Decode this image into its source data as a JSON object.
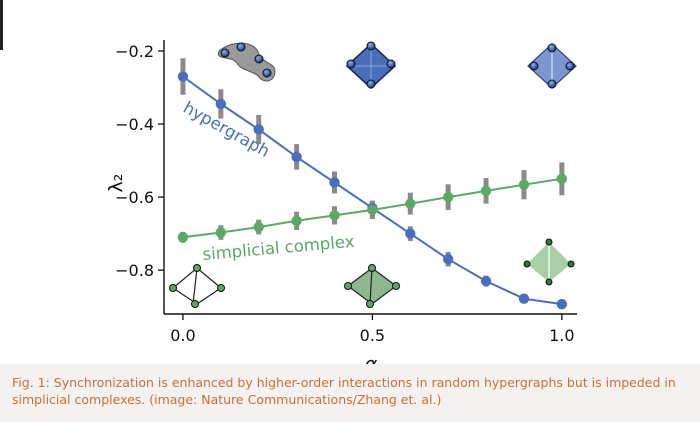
{
  "caption": "Fig. 1: Synchronization is enhanced by higher-order interactions in random hypergraphs but is impeded in simplicial complexes. (image: Nature Communications/Zhang et. al.)",
  "colors": {
    "hypergraph": "#4a6fba",
    "simplicial": "#5aa964",
    "errorbar": "#8a8a8a",
    "caption_text": "#c8703b",
    "caption_bg": "#f3f2f0"
  },
  "chart_data": {
    "type": "line",
    "xlabel": "α",
    "ylabel": "λ₂",
    "xlim": [
      -0.05,
      1.04
    ],
    "ylim": [
      -0.92,
      -0.17
    ],
    "xticks": [
      0.0,
      0.5,
      1.0
    ],
    "xtick_labels": [
      "0.0",
      "0.5",
      "1.0"
    ],
    "yticks": [
      -0.2,
      -0.4,
      -0.6,
      -0.8
    ],
    "ytick_labels": [
      "−0.2",
      "−0.4",
      "−0.6",
      "−0.8"
    ],
    "grid": false,
    "x": [
      0.0,
      0.1,
      0.2,
      0.3,
      0.4,
      0.5,
      0.6,
      0.7,
      0.8,
      0.9,
      1.0
    ],
    "series": [
      {
        "name": "hypergraph",
        "values": [
          -0.27,
          -0.345,
          -0.415,
          -0.49,
          -0.56,
          -0.63,
          -0.7,
          -0.77,
          -0.83,
          -0.878,
          -0.893
        ],
        "err": [
          0.05,
          0.04,
          0.04,
          0.035,
          0.03,
          0.02,
          0.02,
          0.02,
          0.015,
          0.01,
          0.005
        ]
      },
      {
        "name": "simplicial complex",
        "values": [
          -0.71,
          -0.697,
          -0.682,
          -0.665,
          -0.65,
          -0.635,
          -0.618,
          -0.6,
          -0.583,
          -0.566,
          -0.55
        ],
        "err": [
          0.015,
          0.02,
          0.02,
          0.025,
          0.025,
          0.025,
          0.03,
          0.035,
          0.035,
          0.04,
          0.045
        ]
      }
    ]
  }
}
